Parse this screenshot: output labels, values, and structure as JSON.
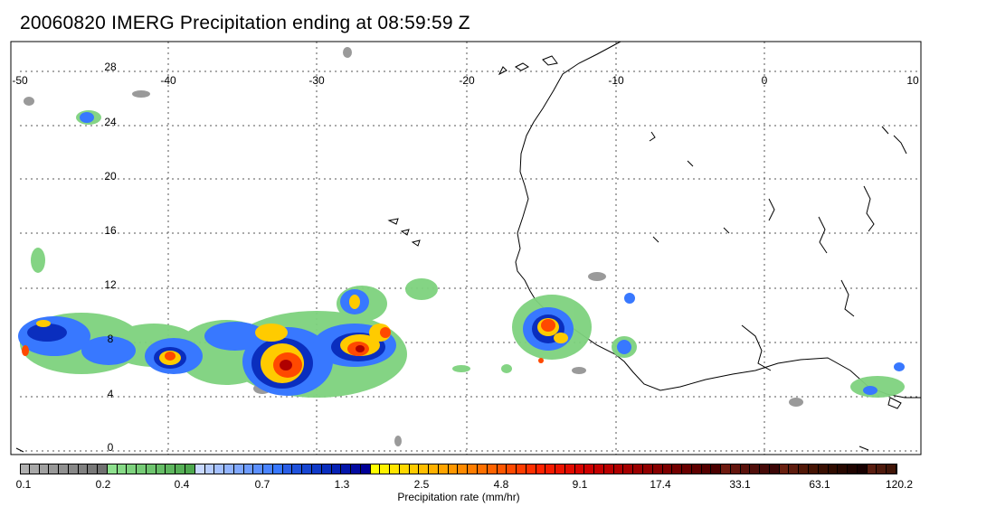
{
  "title": "20060820 IMERG Precipitation ending at 08:59:59 Z",
  "map": {
    "lon_ticks": [
      "-50",
      "-40",
      "-30",
      "-20",
      "-10",
      "0",
      "10"
    ],
    "lat_ticks": [
      "28",
      "24",
      "20",
      "16",
      "12",
      "8",
      "4",
      "0"
    ],
    "lon_range": [
      -50,
      10
    ],
    "lat_range": [
      -0.5,
      30
    ],
    "grid": "dotted",
    "coastline_color": "#000000"
  },
  "colorbar": {
    "label": "Precipitation rate (mm/hr)",
    "tick_labels": [
      "0.1",
      "0.2",
      "0.4",
      "0.7",
      "1.3",
      "2.5",
      "4.8",
      "9.1",
      "17.4",
      "33.1",
      "63.1",
      "120.2"
    ],
    "colors": [
      "#b0b0b0",
      "#a8a8a8",
      "#a0a0a0",
      "#989898",
      "#909090",
      "#888888",
      "#808080",
      "#787878",
      "#707070",
      "#8ee08e",
      "#86d986",
      "#7ed27e",
      "#76cb76",
      "#6ec46e",
      "#66bd66",
      "#5eb65e",
      "#56af56",
      "#4ea84e",
      "#c8d8ff",
      "#b6ccff",
      "#a4c0ff",
      "#92b4ff",
      "#80a8ff",
      "#6e9cff",
      "#5c90ff",
      "#4a84ff",
      "#3878ff",
      "#2a5ee6",
      "#2052dc",
      "#1846d2",
      "#103ac8",
      "#0a2ebe",
      "#0622b4",
      "#0416aa",
      "#020aa0",
      "#000096",
      "#ffff00",
      "#fff200",
      "#ffe500",
      "#ffd800",
      "#ffcb00",
      "#ffbe00",
      "#ffb100",
      "#ffa400",
      "#ff9700",
      "#ff8a00",
      "#ff7d00",
      "#ff7000",
      "#ff6300",
      "#ff5600",
      "#ff4900",
      "#ff3c00",
      "#ff2f00",
      "#ff2200",
      "#f51a00",
      "#eb1200",
      "#e10a00",
      "#d70300",
      "#cd0000",
      "#c30000",
      "#b90000",
      "#af0000",
      "#a50000",
      "#9b0000",
      "#910000",
      "#870000",
      "#7d0000",
      "#730000",
      "#690000",
      "#5f0000",
      "#550000",
      "#4b0000",
      "#6e1a10",
      "#64160e",
      "#5a120c",
      "#500e0a",
      "#460a08",
      "#3c0606",
      "#6a2010",
      "#5e1c0e",
      "#521808",
      "#461404",
      "#3a1002",
      "#300c00",
      "#280800",
      "#200400",
      "#180000",
      "#5a1e10",
      "#4e1a0c",
      "#421608"
    ]
  }
}
